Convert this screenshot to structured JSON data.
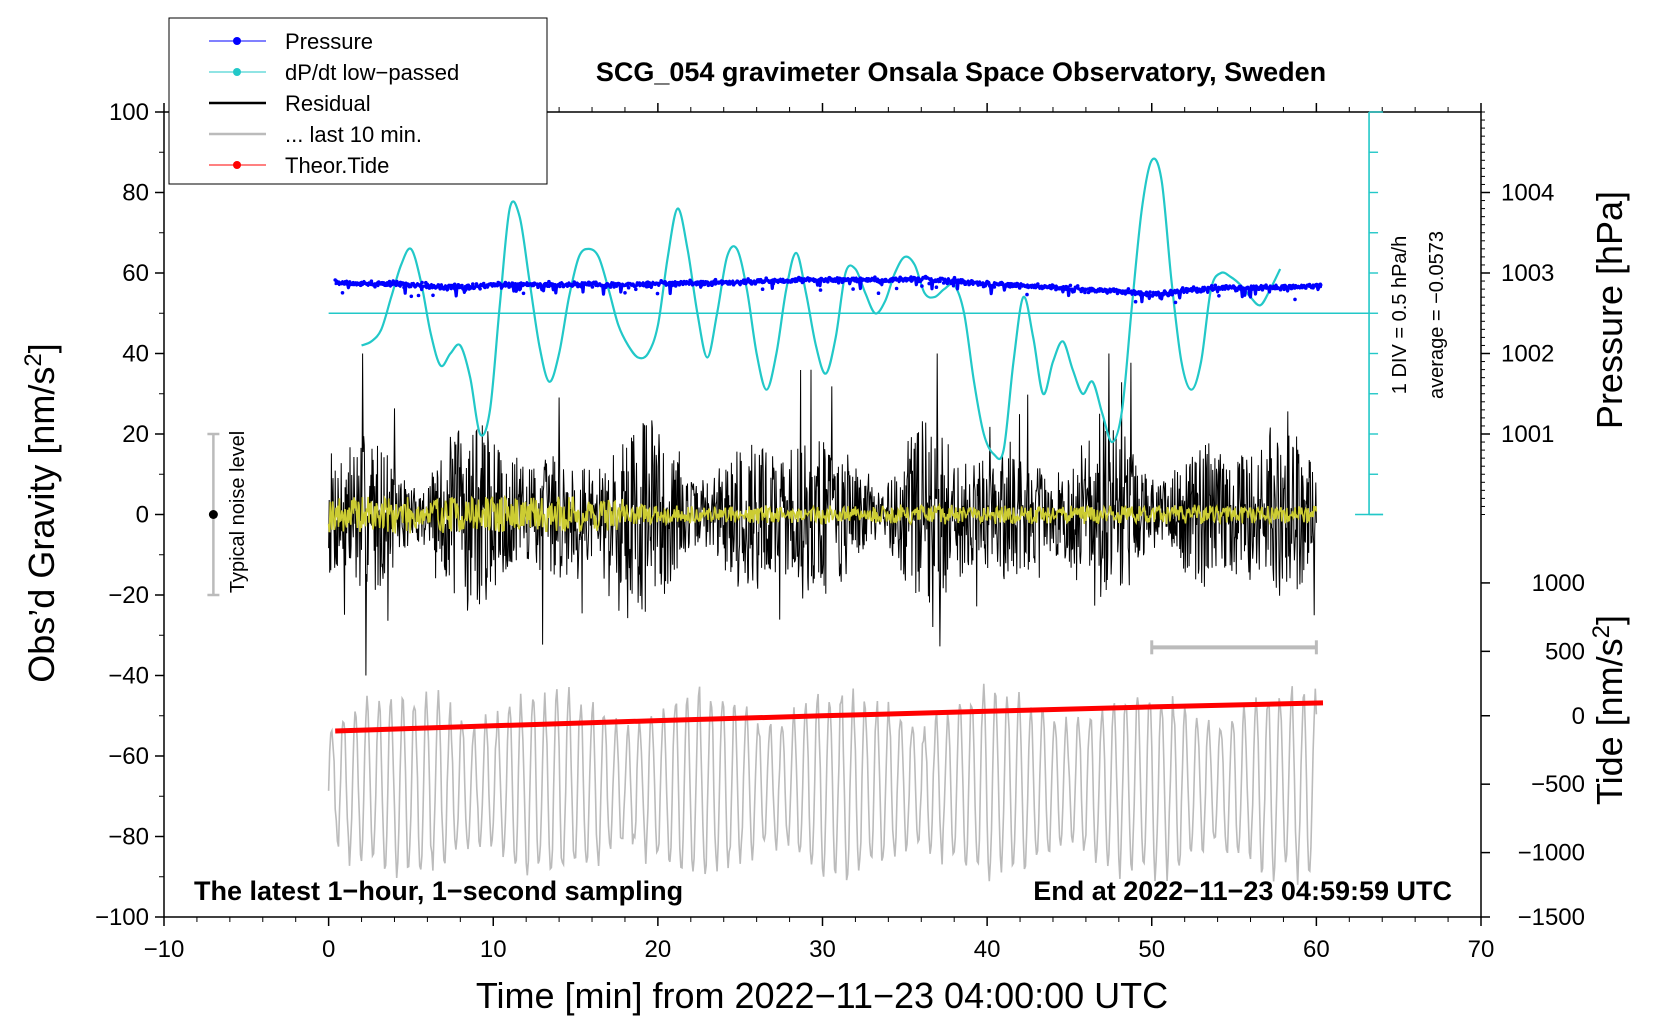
{
  "chart_data": {
    "type": "line",
    "title": "SCG_054 gravimeter Onsala Space Observatory, Sweden",
    "xlabel": "Time [min] from 2022−11−23 04:00:00 UTC",
    "ylabel_left": "Obs’d Gravity [nm/s²]",
    "ylabel_left_parts": {
      "main": "Obs’d Gravity [nm/s",
      "sup": "2",
      "end": "]"
    },
    "ylabel_pressure": "Pressure [hPa]",
    "ylabel_tide": "Tide [nm/s²]",
    "ylabel_tide_parts": {
      "main": "Tide [nm/s",
      "sup": "2",
      "end": "]"
    },
    "xlim": [
      -10,
      70
    ],
    "ylim": [
      -100,
      100
    ],
    "x_ticks": [
      -10,
      0,
      10,
      20,
      30,
      40,
      50,
      60,
      70
    ],
    "x_tick_labels": [
      "−10",
      "0",
      "10",
      "20",
      "30",
      "40",
      "50",
      "60",
      "70"
    ],
    "y_ticks": [
      100,
      80,
      60,
      40,
      20,
      0,
      -20,
      -40,
      -60,
      -80,
      -100
    ],
    "y_tick_labels": [
      "100",
      "80",
      "60",
      "40",
      "20",
      "0",
      "−20",
      "−40",
      "−60",
      "−80",
      "−100"
    ],
    "pressure_axis": {
      "ticks": [
        1004,
        1003,
        1002,
        1001
      ],
      "tick_labels": [
        "1004",
        "1003",
        "1002",
        "1001"
      ],
      "gravity_equiv": [
        80,
        60,
        40,
        20
      ]
    },
    "tide_axis": {
      "ticks": [
        1000,
        500,
        0,
        -500,
        -1000,
        -1500
      ],
      "tick_labels": [
        "1000",
        "500",
        "0",
        "−500",
        "−1000",
        "−1500"
      ],
      "gravity_equiv": [
        -17,
        -34,
        -50,
        -67,
        -84,
        -100
      ]
    },
    "legend": {
      "placement": "top-left",
      "entries": [
        {
          "label": "Pressure",
          "color": "#0000ff",
          "marker": true
        },
        {
          "label": "dP/dt low−passed",
          "color": "#22c8c8",
          "marker": true
        },
        {
          "label": "Residual",
          "color": "#000000",
          "marker": false
        },
        {
          "label": "... last 10 min.",
          "color": "#bbbbbb",
          "marker": false
        },
        {
          "label": "Theor.Tide",
          "color": "#ff0000",
          "marker": true
        }
      ]
    },
    "annotations": {
      "noise_label": "Typical noise level",
      "noise_bar": {
        "x": -7,
        "center": 0,
        "low": -20,
        "high": 20
      },
      "dpdt_scale": "1 DIV = 0.5 hPa/h",
      "dpdt_average": "average = −0.0573",
      "bottom_left": "The latest 1−hour, 1−second sampling",
      "bottom_right": "End at 2022−11−23 04:59:59 UTC",
      "last10_bar": {
        "x0": 50,
        "x1": 60,
        "y": -33
      }
    },
    "series": [
      {
        "name": "Pressure",
        "color": "#0000ff",
        "x": [
          0.4,
          2,
          4,
          6,
          8,
          10,
          12,
          14,
          16,
          18,
          20,
          22,
          24,
          26,
          28,
          30,
          32,
          34,
          36,
          38,
          40,
          42,
          44,
          46,
          48,
          50,
          52,
          54,
          56,
          58,
          60.3
        ],
        "y": [
          57.8,
          57.4,
          57.2,
          56.8,
          56.4,
          57.0,
          57.2,
          57.1,
          57.3,
          57.0,
          57.4,
          57.5,
          57.6,
          57.9,
          58.2,
          58.4,
          58.3,
          58.2,
          58.5,
          58.1,
          57.2,
          56.9,
          56.4,
          55.9,
          55.5,
          54.7,
          55.6,
          56.3,
          56.4,
          56.6,
          56.9
        ]
      },
      {
        "name": "dP/dt low-passed",
        "color": "#22c8c8",
        "baseline": 50,
        "x": [
          2.0,
          2.6,
          3.2,
          3.8,
          4.4,
          5.0,
          5.6,
          6.2,
          6.8,
          7.4,
          8.0,
          8.6,
          9.2,
          9.8,
          10.4,
          11.0,
          11.6,
          12.2,
          12.8,
          13.4,
          14.0,
          14.6,
          15.2,
          15.8,
          16.4,
          17.0,
          17.6,
          18.2,
          18.8,
          19.4,
          20.0,
          20.6,
          21.2,
          21.8,
          22.4,
          23.0,
          23.6,
          24.2,
          24.8,
          25.4,
          26.0,
          26.6,
          27.2,
          27.8,
          28.4,
          29.0,
          29.6,
          30.2,
          30.8,
          31.4,
          32.0,
          32.6,
          33.2,
          33.8,
          34.4,
          35.0,
          35.6,
          36.2,
          36.8,
          37.4,
          38.0,
          38.6,
          39.2,
          39.8,
          40.4,
          41.0,
          41.6,
          42.2,
          42.8,
          43.4,
          44.0,
          44.6,
          45.2,
          45.8,
          46.4,
          47.0,
          47.6,
          48.2,
          48.8,
          49.4,
          50.0,
          50.6,
          51.2,
          51.8,
          52.4,
          53.0,
          53.6,
          54.2,
          54.8,
          55.4,
          56.0,
          56.6,
          57.2,
          57.8
        ],
        "y": [
          42,
          43,
          46,
          54,
          62,
          66,
          58,
          45,
          37,
          40,
          42,
          34,
          20,
          26,
          52,
          76,
          74,
          58,
          42,
          33,
          40,
          54,
          64,
          66,
          64,
          56,
          47,
          42,
          39,
          40,
          47,
          64,
          76,
          66,
          50,
          39,
          50,
          64,
          66,
          56,
          40,
          31,
          40,
          56,
          65,
          55,
          42,
          35,
          44,
          60,
          61,
          55,
          50,
          53,
          60,
          64,
          62,
          55,
          54,
          56,
          57,
          50,
          33,
          20,
          15,
          16,
          38,
          54,
          44,
          30,
          38,
          43,
          36,
          30,
          33,
          25,
          18,
          26,
          52,
          76,
          88,
          83,
          58,
          38,
          31,
          38,
          56,
          60,
          59,
          57,
          54,
          52,
          56,
          61
        ]
      },
      {
        "name": "Residual",
        "color": "#000000",
        "x_range": [
          0,
          60
        ],
        "envelope": [
          0,
          60,
          20,
          25
        ]
      },
      {
        "name": "Residual low-passed",
        "color": "#cccc33",
        "x_range": [
          0,
          60
        ],
        "envelope": [
          0,
          60,
          8,
          3
        ]
      },
      {
        "name": "... last 10 min.",
        "color": "#bbbbbb",
        "x_range": [
          0,
          60
        ],
        "y_center": -67,
        "envelope": [
          0,
          60,
          12,
          16
        ]
      },
      {
        "name": "Theor.Tide",
        "color": "#ff0000",
        "x": [
          0.4,
          10,
          20,
          30,
          40,
          50,
          60.4
        ],
        "y": [
          -53.8,
          -52.5,
          -51.2,
          -50.0,
          -48.9,
          -47.8,
          -46.8
        ]
      }
    ]
  }
}
